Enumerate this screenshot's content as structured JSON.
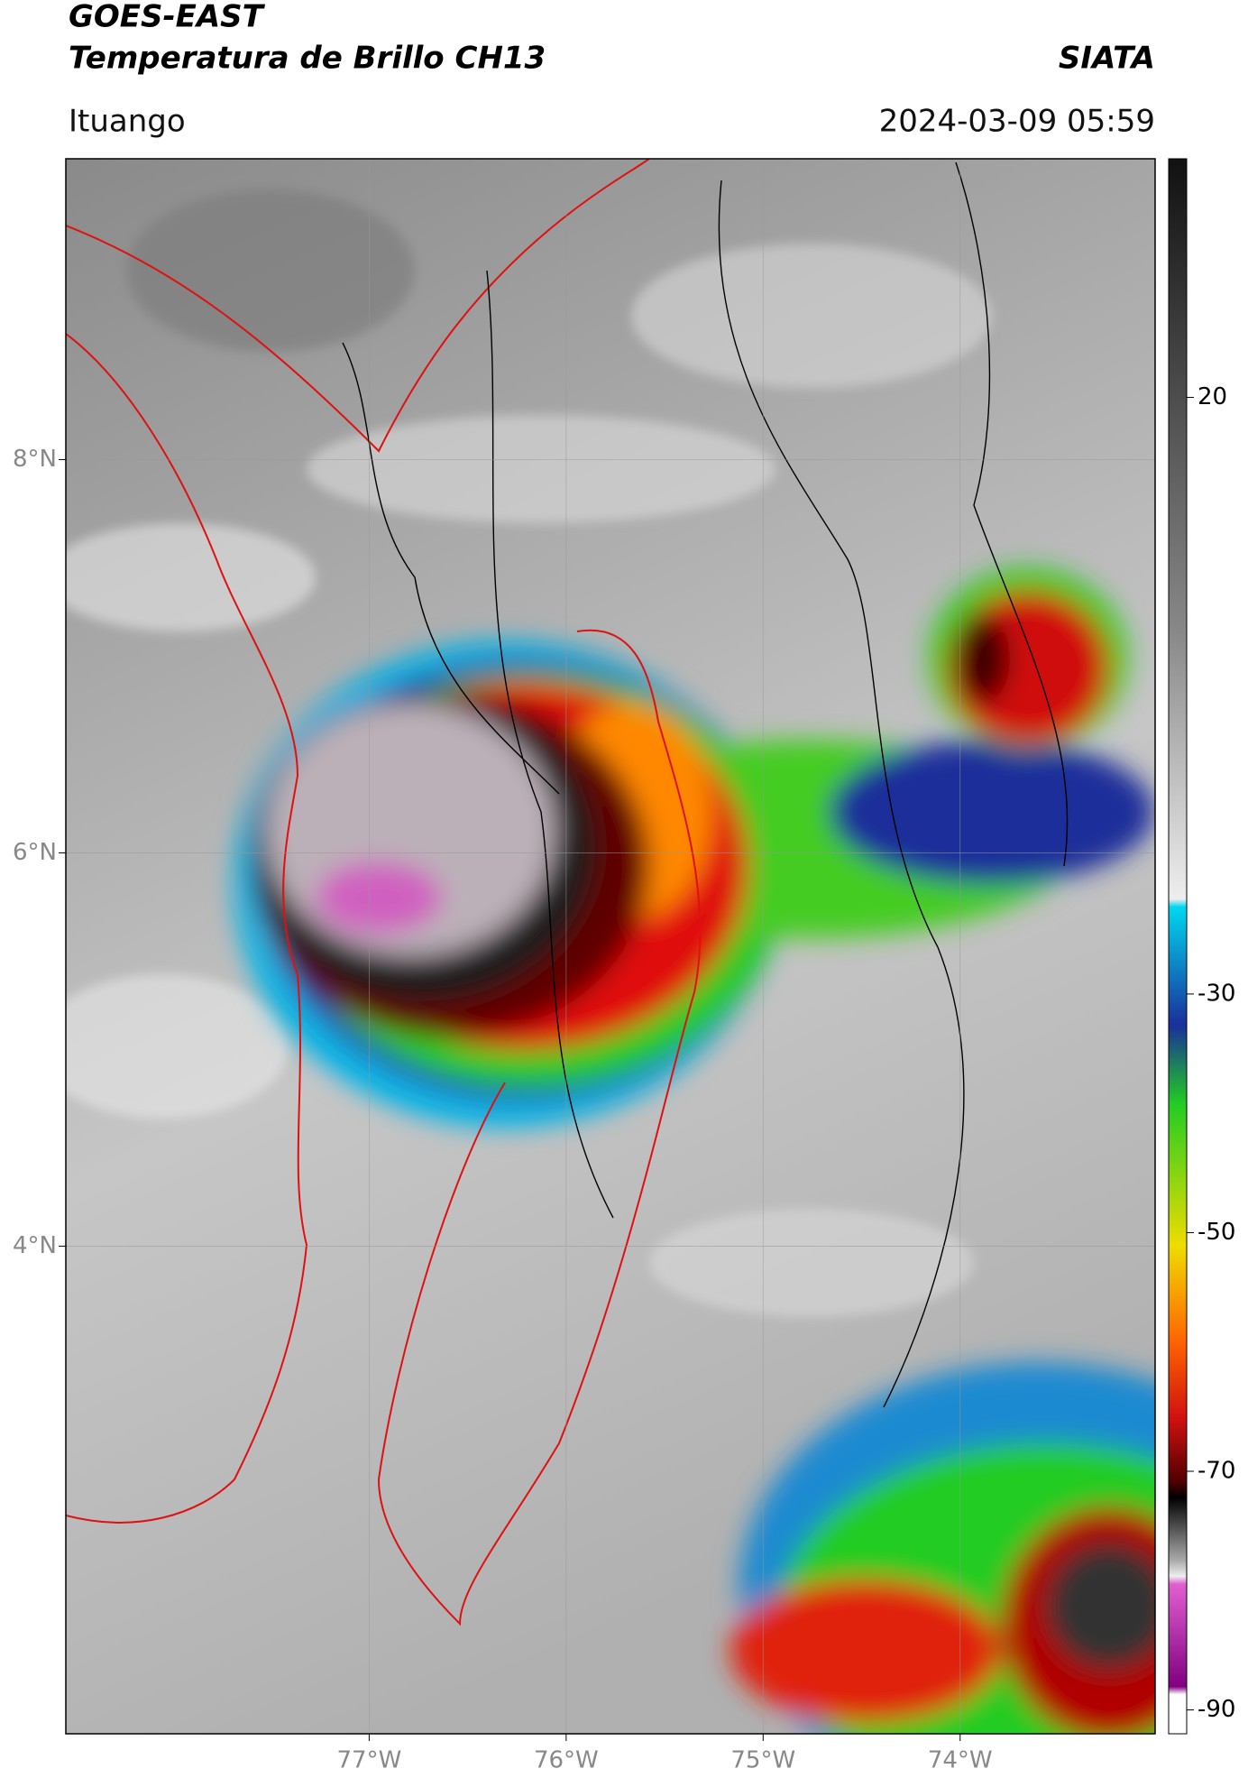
{
  "header": {
    "title": "GOES-EAST",
    "subtitle": "Temperatura de Brillo CH13",
    "source": "SIATA",
    "location": "Ituango",
    "datetime": "2024-03-09 05:59"
  },
  "map": {
    "xlim": [
      -78.54,
      -73.01
    ],
    "ylim": [
      1.52,
      9.53
    ],
    "grid": true,
    "xticks": [
      {
        "value": -77,
        "label": "77°W"
      },
      {
        "value": -76,
        "label": "76°W"
      },
      {
        "value": -75,
        "label": "75°W"
      },
      {
        "value": -74,
        "label": "74°W"
      }
    ],
    "yticks": [
      {
        "value": 8,
        "label": "8°N"
      },
      {
        "value": 6,
        "label": "6°N"
      },
      {
        "value": 4,
        "label": "4°N"
      }
    ]
  },
  "colorbar": {
    "clim": [
      -92,
      40
    ],
    "ticks": [
      20,
      -30,
      -50,
      -70,
      -90
    ]
  }
}
